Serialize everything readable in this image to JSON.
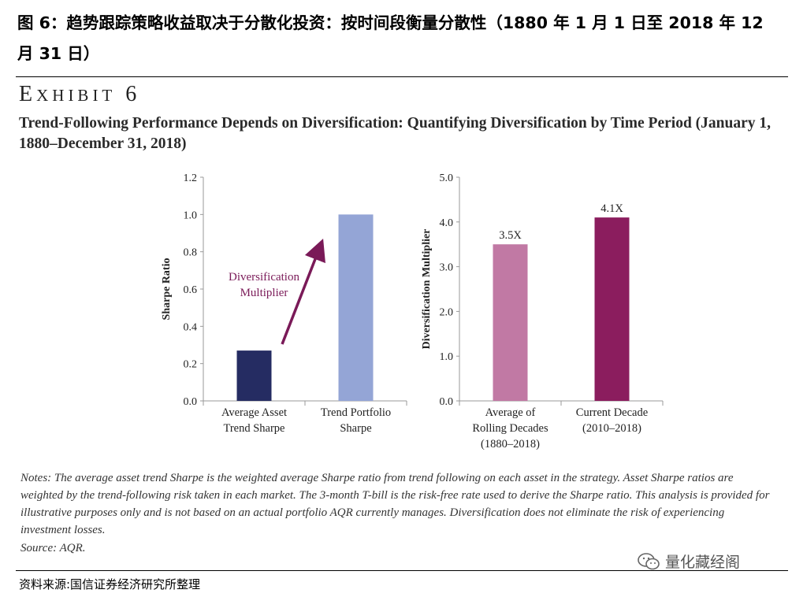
{
  "header": {
    "figure_title": "图 6：趋势跟踪策略收益取决于分散化投资：按时间段衡量分散性（1880 年 1 月 1 日至 2018 年 12 月 31 日）"
  },
  "exhibit": {
    "label_first": "E",
    "label_rest": "XHIBIT",
    "number": "6",
    "subtitle": "Trend-Following Performance Depends on Diversification: Quantifying Diversification by Time Period (January 1, 1880–December 31, 2018)"
  },
  "chart_data": [
    {
      "type": "bar",
      "ylabel": "Sharpe Ratio",
      "ylim": [
        0,
        1.2
      ],
      "yticks": [
        "0.0",
        "0.2",
        "0.4",
        "0.6",
        "0.8",
        "1.0",
        "1.2"
      ],
      "categories": [
        [
          "Average Asset",
          "Trend Sharpe"
        ],
        [
          "Trend Portfolio",
          "Sharpe"
        ]
      ],
      "values": [
        0.27,
        1.0
      ],
      "colors": [
        "#252c62",
        "#94a5d6"
      ],
      "annotation": {
        "lines": [
          "Diversification",
          "Multiplier"
        ],
        "color": "#7a1a58",
        "arrow_color": "#7a1a58"
      }
    },
    {
      "type": "bar",
      "ylabel": "Diversification Multiplier",
      "ylim": [
        0,
        5
      ],
      "yticks": [
        "0.0",
        "1.0",
        "2.0",
        "3.0",
        "4.0",
        "5.0"
      ],
      "categories": [
        [
          "Average of",
          "Rolling Decades",
          "(1880–2018)"
        ],
        [
          "Current Decade",
          "(2010–2018)"
        ]
      ],
      "values": [
        3.5,
        4.1
      ],
      "data_labels": [
        "3.5X",
        "4.1X"
      ],
      "colors": [
        "#c179a4",
        "#8b1d5e"
      ]
    }
  ],
  "notes": {
    "text": "Notes: The average asset trend Sharpe is the weighted average Sharpe ratio from trend following on each asset in the strategy. Asset Sharpe ratios are weighted by the trend-following risk taken in each market. The 3-month T-bill is the risk-free rate used to derive the Sharpe ratio. This analysis is provided for illustrative purposes only and is not based on an actual portfolio AQR currently manages. Diversification does not eliminate the risk of experiencing investment losses.",
    "source": "Source: AQR."
  },
  "footer": {
    "source": "资料来源:国信证券经济研究所整理",
    "watermark": "量化藏经阁",
    "watermark_icon": "wechat-icon"
  }
}
